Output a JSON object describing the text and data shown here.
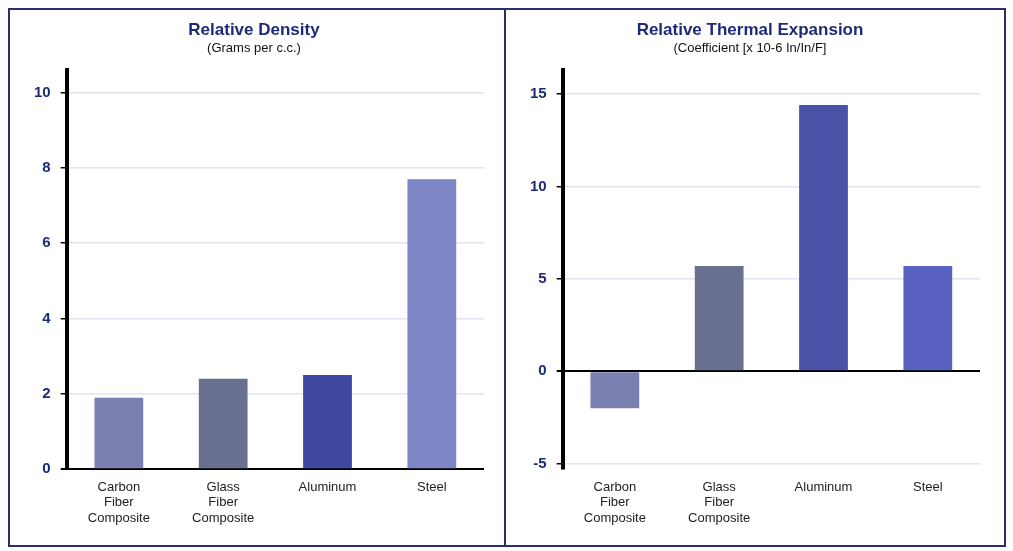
{
  "chart_data": [
    {
      "type": "bar",
      "title": "Relative Density",
      "subtitle": "(Grams per c.c.)",
      "categories": [
        "Carbon Fiber Composite",
        "Glass Fiber Composite",
        "Aluminum",
        "Steel"
      ],
      "values": [
        1.9,
        2.4,
        2.5,
        7.7
      ],
      "colors": [
        "#7b80b0",
        "#6a7090",
        "#3f48a0",
        "#7f86c8"
      ],
      "ylim": [
        0,
        10.6
      ],
      "yticks": [
        0,
        2,
        4,
        6,
        8,
        10
      ],
      "grid": "y",
      "legend": false
    },
    {
      "type": "bar",
      "title": "Relative Thermal Expansion",
      "subtitle": "(Coefficient [x 10-6 In/In/F]",
      "categories": [
        "Carbon Fiber Composite",
        "Glass Fiber Composite",
        "Aluminum",
        "Steel"
      ],
      "values": [
        -2,
        5.7,
        14.4,
        5.7
      ],
      "colors": [
        "#7b80b0",
        "#6a7090",
        "#4a52a8",
        "#5860c0"
      ],
      "ylim": [
        -5.3,
        16.3
      ],
      "yticks": [
        -5,
        0,
        5,
        10,
        15
      ],
      "grid": "y",
      "legend": false
    }
  ]
}
